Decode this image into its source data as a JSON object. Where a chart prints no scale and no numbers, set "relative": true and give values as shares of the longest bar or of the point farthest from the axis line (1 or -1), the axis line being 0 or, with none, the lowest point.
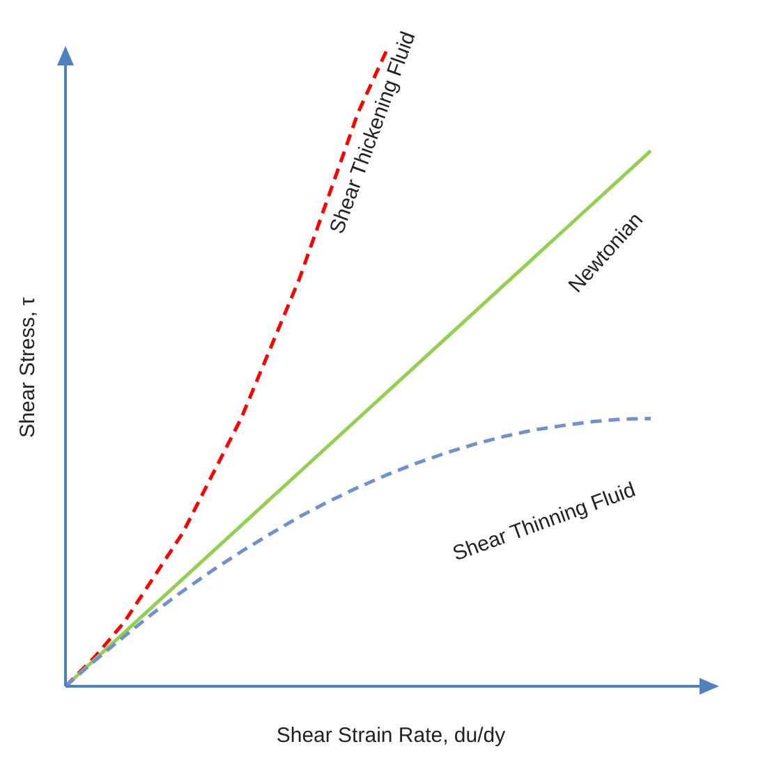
{
  "chart_data": {
    "type": "line",
    "relative": true,
    "xlabel": "Shear Strain Rate, du/dy",
    "ylabel": "Shear Stress, τ",
    "marker": "none",
    "categories": [
      null,
      null,
      null,
      null,
      null,
      null,
      null,
      null,
      null,
      null,
      null,
      null,
      null,
      null,
      null,
      null,
      null,
      null,
      null,
      null,
      null
    ],
    "series": [
      {
        "name": "Shear Thickening Fluid",
        "color": "#ff0000",
        "line_style": "dashed",
        "values": [
          0,
          0.046,
          0.1,
          0.17,
          0.24,
          0.33,
          0.42,
          0.53,
          0.64,
          0.77,
          0.9,
          1,
          null,
          null,
          null,
          null,
          null,
          null,
          null,
          null,
          null
        ]
      },
      {
        "name": "Newtonian",
        "color": "#92d050",
        "line_style": "solid",
        "values": [
          0,
          0.042,
          0.084,
          0.126,
          0.168,
          0.21,
          0.252,
          0.294,
          0.336,
          0.378,
          0.42,
          0.462,
          0.504,
          0.546,
          0.588,
          0.63,
          0.672,
          0.714,
          0.756,
          0.798,
          0.84
        ]
      },
      {
        "name": "Shear Thinning Fluid",
        "color": "#7090d0",
        "line_style": "dashed",
        "values": [
          0,
          0.04,
          0.078,
          0.115,
          0.149,
          0.181,
          0.211,
          0.239,
          0.266,
          0.29,
          0.312,
          0.332,
          0.35,
          0.366,
          0.38,
          0.392,
          0.402,
          0.409,
          0.415,
          0.419,
          0.42
        ]
      }
    ]
  }
}
